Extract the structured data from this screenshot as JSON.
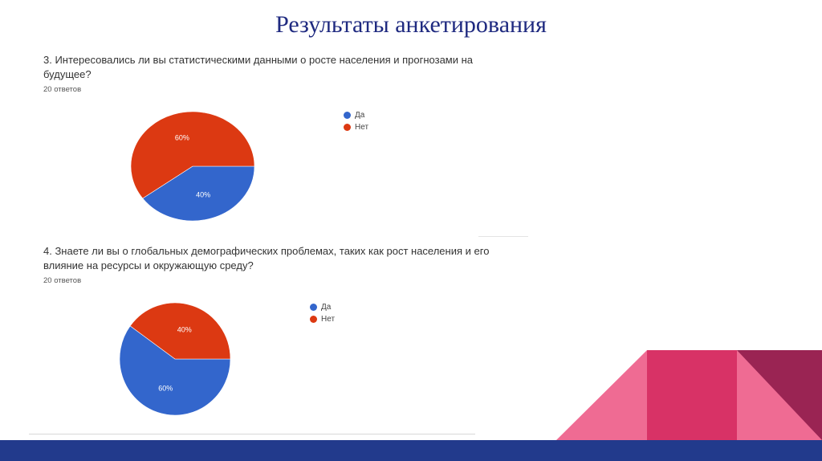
{
  "slide": {
    "title": "Результаты анкетирования"
  },
  "colors": {
    "title": "#1f2a80",
    "yes": "#3366cc",
    "no": "#dc3912",
    "bottom_bar": "#223a8c",
    "deco_pink_light": "#ef6b93",
    "deco_pink": "#d83266",
    "deco_wine": "#9a2453"
  },
  "questions": [
    {
      "title": "3. Интересовались ли вы статистическими данными о росте населения и прогнозами на будущее?",
      "count": "20 ответов",
      "legend": [
        "Да",
        "Нет"
      ]
    },
    {
      "title": "4. Знаете ли вы о глобальных демографических проблемах, таких как рост населения и его влияние на ресурсы и окружающую среду?",
      "count": "20 ответов",
      "legend": [
        "Да",
        "Нет"
      ]
    }
  ],
  "chart_data": [
    {
      "type": "pie",
      "categories": [
        "Да",
        "Нет"
      ],
      "values": [
        40,
        60
      ],
      "data_labels": [
        "40%",
        "60%"
      ],
      "legend_position": "right"
    },
    {
      "type": "pie",
      "categories": [
        "Да",
        "Нет"
      ],
      "values": [
        60,
        40
      ],
      "data_labels": [
        "60%",
        "40%"
      ],
      "legend_position": "right"
    }
  ]
}
